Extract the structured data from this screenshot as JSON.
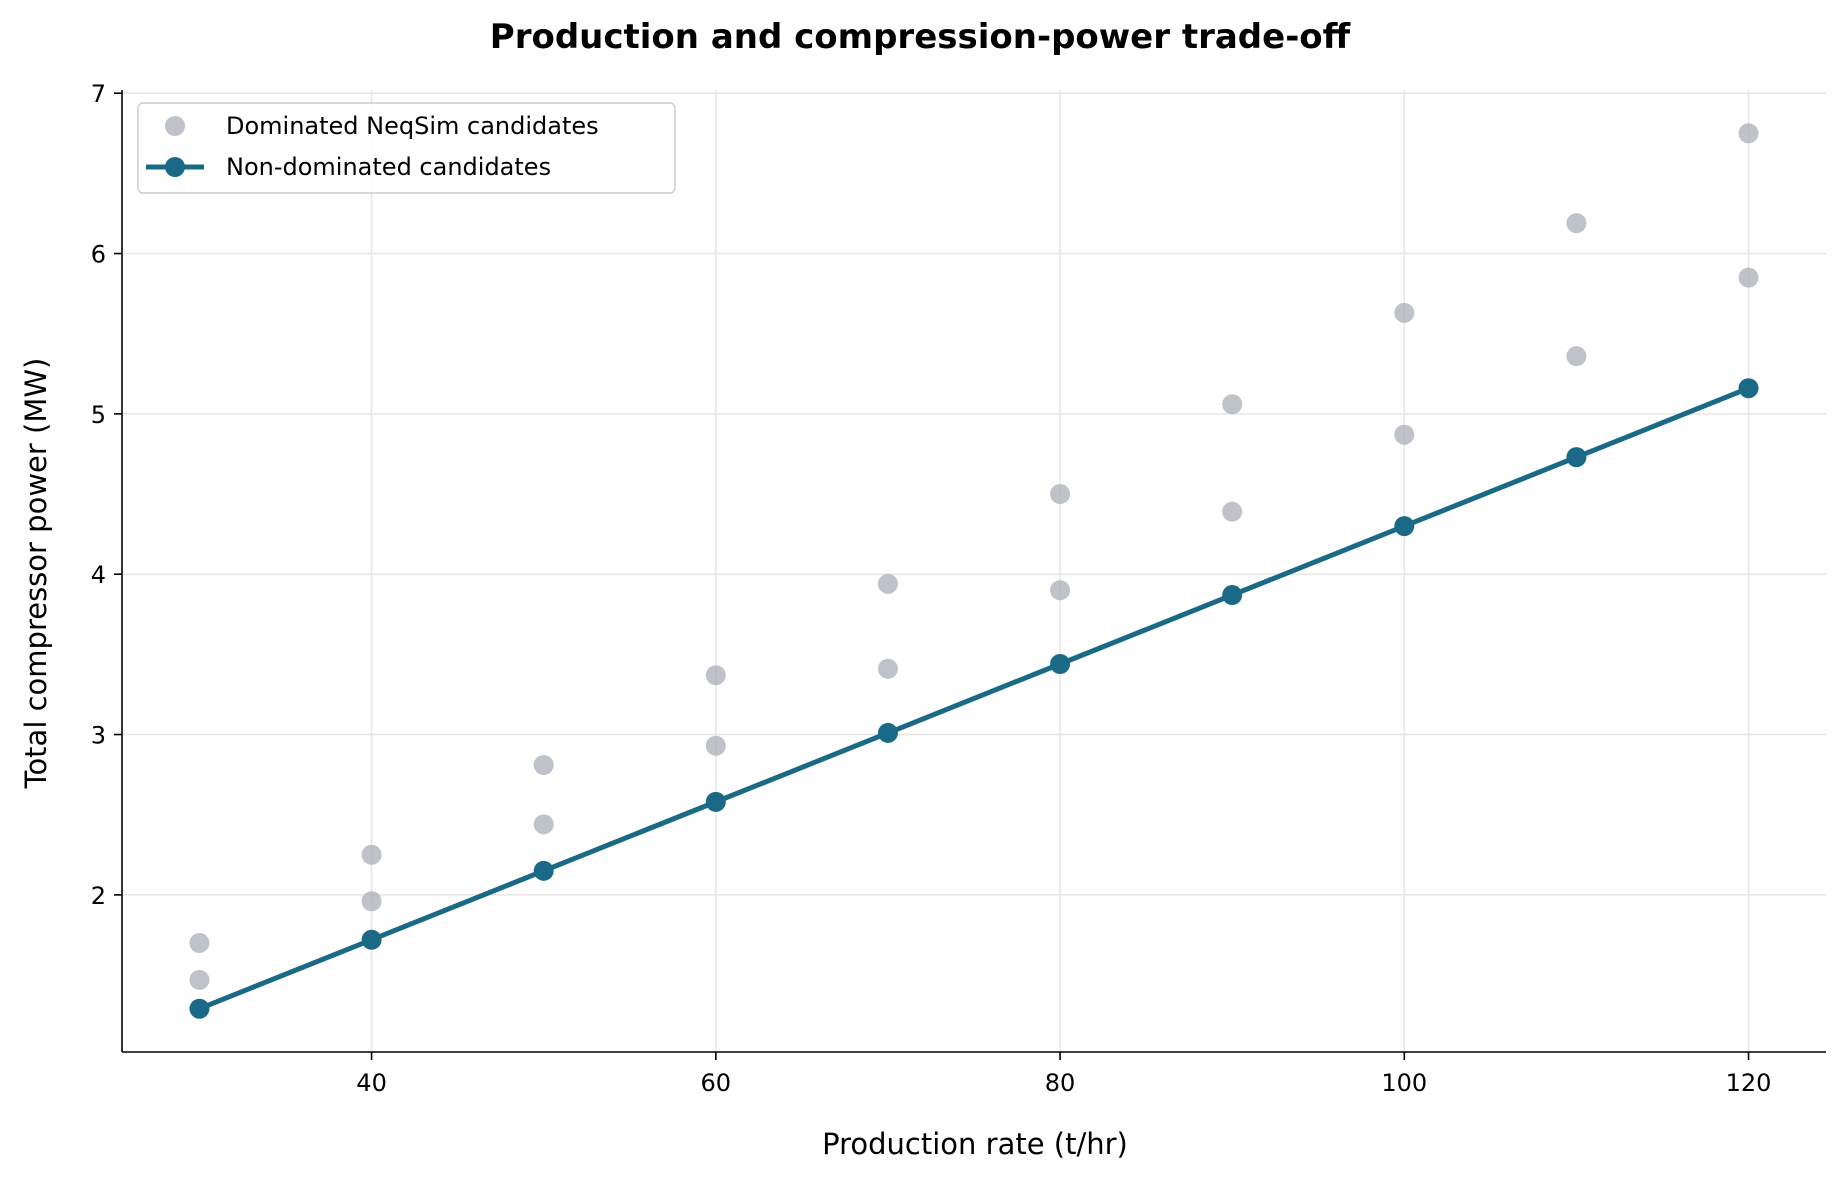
{
  "chart_data": {
    "type": "line",
    "title": "Production and compression-power trade-off",
    "xlabel": "Production rate (t/hr)",
    "ylabel": "Total compressor power (MW)",
    "xlim": [
      25.5,
      124.5
    ],
    "ylim": [
      1.02,
      7.02
    ],
    "xticks": [
      40,
      60,
      80,
      100,
      120
    ],
    "yticks": [
      2,
      3,
      4,
      5,
      6,
      7
    ],
    "grid": true,
    "legend_position": "top-left",
    "colors": {
      "dominated": "#a9aeb5",
      "front": "#1a6a87",
      "grid": "#e6e6e6",
      "axis": "#000000"
    },
    "series": [
      {
        "name": "Dominated NeqSim candidates",
        "kind": "scatter",
        "points": [
          [
            30,
            1.47
          ],
          [
            30,
            1.7
          ],
          [
            40,
            1.96
          ],
          [
            40,
            2.25
          ],
          [
            50,
            2.44
          ],
          [
            50,
            2.81
          ],
          [
            60,
            2.93
          ],
          [
            60,
            3.37
          ],
          [
            70,
            3.41
          ],
          [
            70,
            3.94
          ],
          [
            80,
            3.9
          ],
          [
            80,
            4.5
          ],
          [
            90,
            4.39
          ],
          [
            90,
            5.06
          ],
          [
            100,
            4.87
          ],
          [
            100,
            5.63
          ],
          [
            110,
            5.36
          ],
          [
            110,
            6.19
          ],
          [
            120,
            5.85
          ],
          [
            120,
            6.75
          ]
        ]
      },
      {
        "name": "Non-dominated candidates",
        "kind": "line-marker",
        "points": [
          [
            30,
            1.29
          ],
          [
            40,
            1.72
          ],
          [
            50,
            2.15
          ],
          [
            60,
            2.58
          ],
          [
            70,
            3.01
          ],
          [
            80,
            3.44
          ],
          [
            90,
            3.87
          ],
          [
            100,
            4.3
          ],
          [
            110,
            4.73
          ],
          [
            120,
            5.16
          ]
        ]
      }
    ]
  }
}
